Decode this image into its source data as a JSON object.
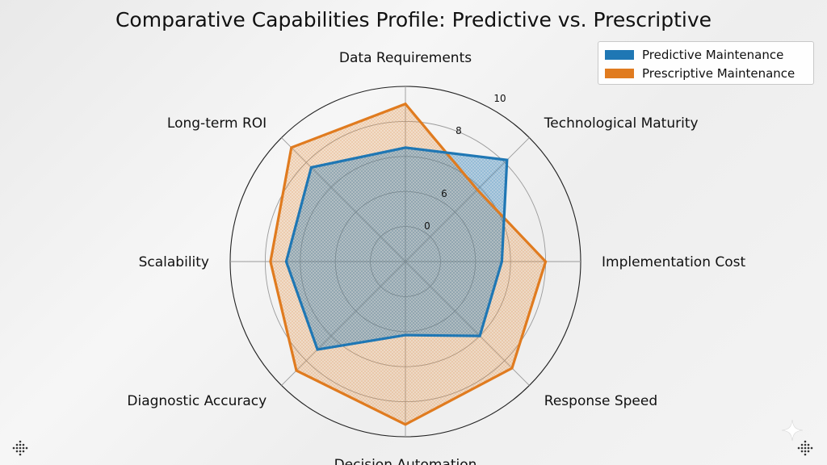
{
  "chart_data": {
    "type": "radar",
    "title": "Comparative Capabilities Profile: Predictive vs. Prescriptive",
    "axes": [
      "Data Requirements",
      "Technological Maturity",
      "Implementation Cost",
      "Response Speed",
      "Decision Automation",
      "Diagnostic Accuracy",
      "Scalability",
      "Long-term ROI"
    ],
    "radial_ticks": [
      "0",
      "6",
      "8",
      "10"
    ],
    "series": [
      {
        "name": "Predictive Maintenance",
        "color": "#1f77b4",
        "values": [
          6.5,
          8.2,
          5.5,
          6.0,
          4.2,
          7.1,
          6.8,
          7.6
        ]
      },
      {
        "name": "Prescriptive Maintenance",
        "color": "#e07b1f",
        "values": [
          9.0,
          5.8,
          8.0,
          8.6,
          9.3,
          8.8,
          7.7,
          9.2
        ]
      }
    ],
    "legend_position": "top-right",
    "grid": true
  }
}
